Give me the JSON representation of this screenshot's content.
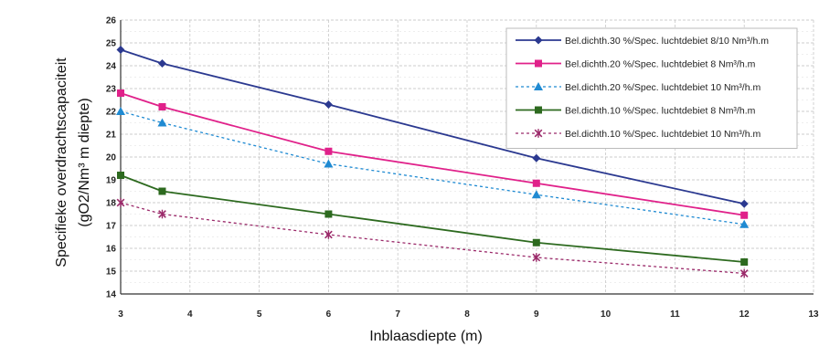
{
  "chart_data": {
    "type": "line",
    "xlabel": "Inblaasdiepte (m)",
    "ylabel_line1": "Specifieke overdrachtscapaciteit",
    "ylabel_line2": "(gO2/Nm³ m diepte)",
    "x_ticks": [
      "3",
      "4",
      "5",
      "6",
      "7",
      "8",
      "9",
      "10",
      "11",
      "12",
      "13"
    ],
    "y_ticks": [
      "14",
      "15",
      "16",
      "17",
      "18",
      "19",
      "20",
      "21",
      "22",
      "23",
      "24",
      "25",
      "26"
    ],
    "xlim": [
      3,
      13
    ],
    "ylim": [
      14,
      26
    ],
    "grid": true,
    "legend_position": "top-right",
    "series": [
      {
        "name": "Bel.dichth.30 %/Spec. luchtdebiet 8/10 Nm³/h.m",
        "color": "#2b3990",
        "marker": "diamond",
        "dash": "solid",
        "x": [
          3,
          3.6,
          6,
          9,
          12
        ],
        "y": [
          24.7,
          24.1,
          22.3,
          19.95,
          17.95
        ]
      },
      {
        "name": "Bel.dichth.20 %/Spec. luchtdebiet 8 Nm³/h.m",
        "color": "#e0218a",
        "marker": "square",
        "dash": "solid",
        "x": [
          3,
          3.6,
          6,
          9,
          12
        ],
        "y": [
          22.8,
          22.2,
          20.25,
          18.85,
          17.45
        ]
      },
      {
        "name": "Bel.dichth.20 %/Spec. luchtdebiet 10 Nm³/h.m",
        "color": "#1f8ad2",
        "marker": "triangle",
        "dash": "dashed",
        "x": [
          3,
          3.6,
          6,
          9,
          12
        ],
        "y": [
          22.0,
          21.5,
          19.7,
          18.35,
          17.05
        ]
      },
      {
        "name": "Bel.dichth.10 %/Spec. luchtdebiet 8 Nm³/h.m",
        "color": "#2d6a1f",
        "marker": "square",
        "dash": "solid",
        "x": [
          3,
          3.6,
          6,
          9,
          12
        ],
        "y": [
          19.2,
          18.5,
          17.5,
          16.25,
          15.4
        ]
      },
      {
        "name": "Bel.dichth.10 %/Spec. luchtdebiet 10 Nm³/h.m",
        "color": "#9b2a6a",
        "marker": "star",
        "dash": "dashed",
        "x": [
          3,
          3.6,
          6,
          9,
          12
        ],
        "y": [
          18.0,
          17.5,
          16.6,
          15.6,
          14.9
        ]
      }
    ]
  }
}
